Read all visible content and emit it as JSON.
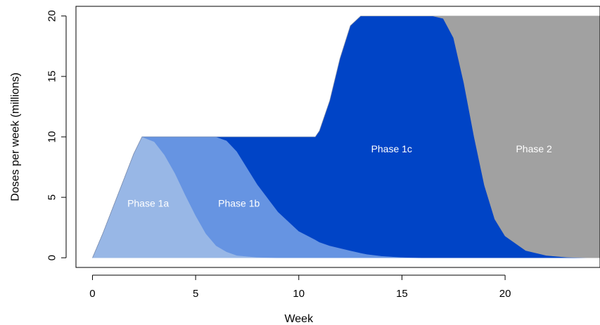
{
  "chart_data": {
    "type": "area",
    "xlabel": "Week",
    "ylabel": "Doses per week (millions)",
    "xlim": [
      -0.8,
      24.6
    ],
    "ylim": [
      -0.8,
      20.8
    ],
    "xticks": [
      0,
      5,
      10,
      15,
      20
    ],
    "yticks": [
      0,
      5,
      10,
      15,
      20
    ],
    "stacked": true,
    "colors": {
      "phase_1a": "#98b7e6",
      "phase_1b": "#6694e2",
      "phase_1c": "#0044c6",
      "phase_2": "#a1a1a1"
    },
    "x": [
      0,
      0.5,
      1,
      1.5,
      2,
      2.4,
      3,
      3.5,
      4,
      4.5,
      5,
      5.5,
      6,
      6.5,
      7,
      8,
      9,
      10,
      10.8,
      11,
      11.5,
      12,
      12.5,
      13,
      13.3,
      14,
      15,
      16,
      16.5,
      17,
      17.5,
      18,
      18.5,
      19,
      19.5,
      20,
      21,
      22,
      23,
      24,
      24.6
    ],
    "series": [
      {
        "name": "Phase 1a",
        "values": [
          0,
          2,
          4.2,
          6.4,
          8.6,
          10,
          9.6,
          8.5,
          7.0,
          5.2,
          3.5,
          2.0,
          1.0,
          0.5,
          0.2,
          0.05,
          0,
          0,
          0,
          0,
          0,
          0,
          0,
          0,
          0,
          0,
          0,
          0,
          0,
          0,
          0,
          0,
          0,
          0,
          0,
          0,
          0,
          0,
          0,
          0,
          0
        ]
      },
      {
        "name": "Phase 1b",
        "values": [
          0,
          0,
          0,
          0,
          0,
          0,
          0.4,
          1.5,
          3.0,
          4.8,
          6.5,
          8.0,
          9.0,
          9.2,
          8.6,
          6.0,
          3.8,
          2.2,
          1.5,
          1.3,
          1.0,
          0.8,
          0.6,
          0.4,
          0.3,
          0.15,
          0.05,
          0,
          0,
          0,
          0,
          0,
          0,
          0,
          0,
          0,
          0,
          0,
          0,
          0,
          0
        ]
      },
      {
        "name": "Phase 1c",
        "values": [
          0,
          0,
          0,
          0,
          0,
          0,
          0,
          0,
          0,
          0,
          0,
          0,
          0,
          0.3,
          1.2,
          3.95,
          6.2,
          7.8,
          8.5,
          9.2,
          12.0,
          15.7,
          18.6,
          19.6,
          19.7,
          19.85,
          19.95,
          20,
          20,
          19.8,
          18.2,
          14.5,
          10.0,
          6.0,
          3.2,
          1.8,
          0.6,
          0.2,
          0.05,
          0,
          0
        ]
      },
      {
        "name": "Phase 2",
        "values": [
          0,
          0,
          0,
          0,
          0,
          0,
          0,
          0,
          0,
          0,
          0,
          0,
          0,
          0,
          0,
          0,
          0,
          0,
          0,
          0,
          0,
          0,
          0,
          0,
          0,
          0,
          0,
          0,
          0,
          0.2,
          1.8,
          5.5,
          10.0,
          14.0,
          16.8,
          18.2,
          19.4,
          19.8,
          19.95,
          20,
          20
        ]
      }
    ],
    "labels": [
      {
        "text": "Phase 1a",
        "x": 2.7,
        "y": 4.5
      },
      {
        "text": "Phase 1b",
        "x": 7.1,
        "y": 4.5
      },
      {
        "text": "Phase 1c",
        "x": 14.5,
        "y": 9
      },
      {
        "text": "Phase 2",
        "x": 21.4,
        "y": 9
      }
    ]
  }
}
